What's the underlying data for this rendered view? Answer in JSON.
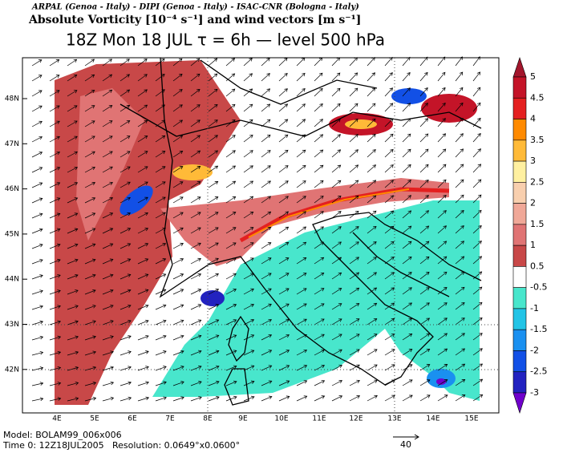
{
  "header": {
    "credits": "ARPAL (Genoa - Italy)  -  DIPI (Genoa - Italy)  -  ISAC-CNR (Bologna - Italy)",
    "field": "Absolute Vorticity [10⁻⁴ s⁻¹] and wind vectors [m s⁻¹]",
    "title": "18Z Mon 18 JUL  τ = 6h  —  level 500 hPa"
  },
  "map": {
    "lon_labels": [
      "4E",
      "5E",
      "6E",
      "7E",
      "8E",
      "9E",
      "10E",
      "11E",
      "12E",
      "13E",
      "14E",
      "15E"
    ],
    "lat_labels": [
      "48N",
      "47N",
      "46N",
      "45N",
      "44N",
      "43N",
      "42N"
    ]
  },
  "colorbar": {
    "labels": [
      "5",
      "4.5",
      "4",
      "3.5",
      "3",
      "2.5",
      "2",
      "1.5",
      "1",
      "0.5",
      "-0.5",
      "-1",
      "-1.5",
      "-2",
      "-2.5",
      "-3"
    ],
    "colors": [
      "#a3162c",
      "#c41428",
      "#e42020",
      "#ff8a00",
      "#ffba38",
      "#fff0a0",
      "#f8cfae",
      "#f0a898",
      "#e07474",
      "#c84848",
      "#ffffff",
      "#48e6cc",
      "#22c4e6",
      "#1a90f0",
      "#1250e6",
      "#2222c0",
      "#7000cc"
    ]
  },
  "footer": {
    "model": "Model: BOLAM99_006x006",
    "time": "Time 0: 12Z18JUL2005",
    "resolution": "Resolution: 0.0649°x0.0600°",
    "vector_ref": "40"
  }
}
